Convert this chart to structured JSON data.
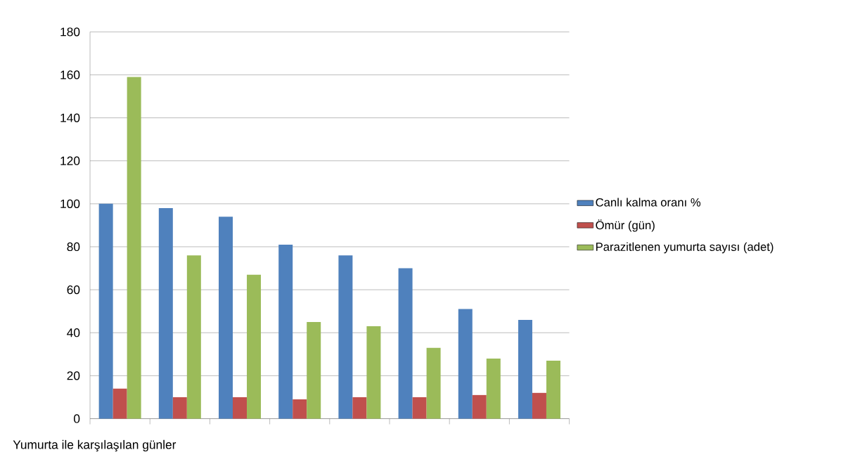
{
  "chart_data": {
    "type": "bar",
    "xlabel": "Yumurta ile karşılaşılan günler",
    "categories": [
      null,
      null,
      null,
      null,
      null,
      null,
      null,
      null
    ],
    "series": [
      {
        "name": "Canlı kalma oranı %",
        "color": "#4f81bd",
        "values": [
          100,
          98,
          94,
          81,
          76,
          70,
          51,
          46
        ]
      },
      {
        "name": "Ömür (gün)",
        "color": "#c0504d",
        "values": [
          14,
          10,
          10,
          9,
          10,
          10,
          11,
          12
        ]
      },
      {
        "name": "Parazitlenen yumurta sayısı (adet)",
        "color": "#9bbb59",
        "values": [
          159,
          76,
          67,
          45,
          43,
          33,
          28,
          27
        ]
      }
    ],
    "ylim": [
      0,
      180
    ],
    "yticks": [
      0,
      20,
      40,
      60,
      80,
      100,
      120,
      140,
      160,
      180
    ],
    "grid": "y",
    "legend": "right"
  }
}
